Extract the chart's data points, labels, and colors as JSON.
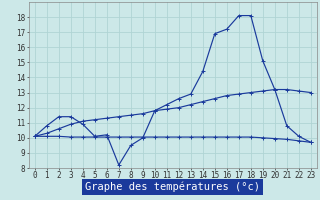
{
  "xlabel": "Graphe des températures (°c)",
  "background_color": "#cce8e8",
  "line_color": "#1a3a9c",
  "x_hours": [
    0,
    1,
    2,
    3,
    4,
    5,
    6,
    7,
    8,
    9,
    10,
    11,
    12,
    13,
    14,
    15,
    16,
    17,
    18,
    19,
    20,
    21,
    22,
    23
  ],
  "temp_curve": [
    10.1,
    10.8,
    11.4,
    11.4,
    10.9,
    10.1,
    10.2,
    8.2,
    9.5,
    10.0,
    11.8,
    12.2,
    12.6,
    12.9,
    14.4,
    16.9,
    17.2,
    18.1,
    18.1,
    15.1,
    13.2,
    10.8,
    10.1,
    9.7
  ],
  "avg_rise_curve": [
    10.1,
    10.3,
    10.6,
    10.9,
    11.1,
    11.2,
    11.3,
    11.4,
    11.5,
    11.6,
    11.8,
    11.9,
    12.0,
    12.2,
    12.4,
    12.6,
    12.8,
    12.9,
    13.0,
    13.1,
    13.2,
    13.2,
    13.1,
    13.0
  ],
  "flat_curve": [
    10.1,
    10.1,
    10.1,
    10.05,
    10.05,
    10.05,
    10.05,
    10.05,
    10.05,
    10.05,
    10.05,
    10.05,
    10.05,
    10.05,
    10.05,
    10.05,
    10.05,
    10.05,
    10.05,
    10.0,
    9.95,
    9.9,
    9.8,
    9.7
  ],
  "ylim": [
    8,
    19
  ],
  "yticks": [
    8,
    9,
    10,
    11,
    12,
    13,
    14,
    15,
    16,
    17,
    18
  ],
  "xticks": [
    0,
    1,
    2,
    3,
    4,
    5,
    6,
    7,
    8,
    9,
    10,
    11,
    12,
    13,
    14,
    15,
    16,
    17,
    18,
    19,
    20,
    21,
    22,
    23
  ],
  "tick_fontsize": 5.5,
  "xlabel_fontsize": 7.5,
  "grid_color": "#b0d4d4",
  "spine_color": "#888888"
}
